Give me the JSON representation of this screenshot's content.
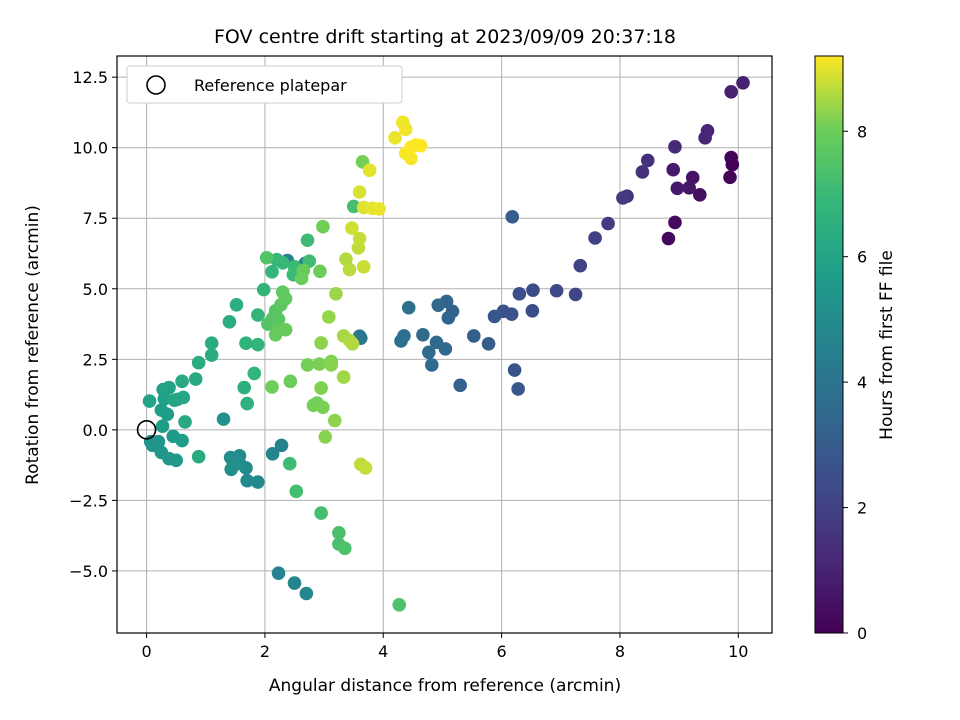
{
  "chart_data": {
    "type": "scatter",
    "title": "FOV centre drift starting at 2023/09/09 20:37:18",
    "xlabel": "Angular distance from reference (arcmin)",
    "ylabel": "Rotation from reference (arcmin)",
    "xlim": [
      -0.5,
      10.57
    ],
    "ylim": [
      -7.2,
      13.25
    ],
    "xticks": [
      0,
      2,
      4,
      6,
      8,
      10
    ],
    "yticks": [
      -5.0,
      -2.5,
      0.0,
      2.5,
      5.0,
      7.5,
      10.0,
      12.5
    ],
    "xtick_labels": [
      "0",
      "2",
      "4",
      "6",
      "8",
      "10"
    ],
    "ytick_labels": [
      "−5.0",
      "−2.5",
      "0.0",
      "2.5",
      "5.0",
      "7.5",
      "10.0",
      "12.5"
    ],
    "grid": true,
    "legend": {
      "placement": "top-left",
      "entries": [
        "Reference platepar"
      ]
    },
    "reference_point": {
      "x": 0.0,
      "y": 0.0
    },
    "colorbar": {
      "label": "Hours from first FF file",
      "colormap": "viridis",
      "range": [
        0,
        9.2
      ],
      "ticks": [
        0,
        2,
        4,
        6,
        8
      ],
      "tick_labels": [
        "0",
        "2",
        "4",
        "6",
        "8"
      ]
    },
    "points": [
      {
        "x": 9.9,
        "y": 9.4,
        "h": 0.05
      },
      {
        "x": 9.88,
        "y": 9.65,
        "h": 0.1
      },
      {
        "x": 9.86,
        "y": 8.95,
        "h": 0.12
      },
      {
        "x": 8.82,
        "y": 6.78,
        "h": 0.25
      },
      {
        "x": 8.93,
        "y": 7.35,
        "h": 0.3
      },
      {
        "x": 9.35,
        "y": 8.33,
        "h": 0.4
      },
      {
        "x": 9.23,
        "y": 8.94,
        "h": 0.55
      },
      {
        "x": 9.17,
        "y": 8.58,
        "h": 0.62
      },
      {
        "x": 8.97,
        "y": 8.56,
        "h": 0.7
      },
      {
        "x": 8.9,
        "y": 9.22,
        "h": 0.75
      },
      {
        "x": 9.88,
        "y": 11.98,
        "h": 0.9
      },
      {
        "x": 10.08,
        "y": 12.3,
        "h": 0.95
      },
      {
        "x": 9.48,
        "y": 10.6,
        "h": 1.05
      },
      {
        "x": 9.44,
        "y": 10.35,
        "h": 1.1
      },
      {
        "x": 8.93,
        "y": 10.03,
        "h": 1.25
      },
      {
        "x": 8.47,
        "y": 9.55,
        "h": 1.4
      },
      {
        "x": 8.38,
        "y": 9.14,
        "h": 1.5
      },
      {
        "x": 8.12,
        "y": 8.28,
        "h": 1.7
      },
      {
        "x": 8.05,
        "y": 8.22,
        "h": 1.75
      },
      {
        "x": 7.8,
        "y": 7.31,
        "h": 1.85
      },
      {
        "x": 7.58,
        "y": 6.8,
        "h": 1.95
      },
      {
        "x": 7.33,
        "y": 5.82,
        "h": 2.0
      },
      {
        "x": 7.25,
        "y": 4.8,
        "h": 2.15
      },
      {
        "x": 6.93,
        "y": 4.93,
        "h": 2.25
      },
      {
        "x": 6.53,
        "y": 4.95,
        "h": 2.35
      },
      {
        "x": 6.52,
        "y": 4.22,
        "h": 2.45
      },
      {
        "x": 6.3,
        "y": 4.82,
        "h": 2.5
      },
      {
        "x": 6.17,
        "y": 4.1,
        "h": 2.6
      },
      {
        "x": 6.03,
        "y": 4.2,
        "h": 2.65
      },
      {
        "x": 5.88,
        "y": 4.02,
        "h": 2.75
      },
      {
        "x": 6.22,
        "y": 2.12,
        "h": 2.7
      },
      {
        "x": 6.28,
        "y": 1.45,
        "h": 2.85
      },
      {
        "x": 6.18,
        "y": 7.55,
        "h": 3.05
      },
      {
        "x": 5.78,
        "y": 3.05,
        "h": 3.0
      },
      {
        "x": 5.53,
        "y": 3.33,
        "h": 3.1
      },
      {
        "x": 5.3,
        "y": 1.58,
        "h": 3.2
      },
      {
        "x": 5.17,
        "y": 4.2,
        "h": 3.2
      },
      {
        "x": 5.07,
        "y": 4.55,
        "h": 3.3
      },
      {
        "x": 5.1,
        "y": 3.97,
        "h": 3.35
      },
      {
        "x": 4.93,
        "y": 4.42,
        "h": 3.4
      },
      {
        "x": 4.9,
        "y": 3.1,
        "h": 3.45
      },
      {
        "x": 5.05,
        "y": 2.87,
        "h": 3.5
      },
      {
        "x": 4.77,
        "y": 2.75,
        "h": 3.55
      },
      {
        "x": 4.82,
        "y": 2.3,
        "h": 3.6
      },
      {
        "x": 4.67,
        "y": 3.37,
        "h": 3.6
      },
      {
        "x": 4.43,
        "y": 4.33,
        "h": 3.75
      },
      {
        "x": 4.35,
        "y": 3.33,
        "h": 3.8
      },
      {
        "x": 4.3,
        "y": 3.15,
        "h": 3.85
      },
      {
        "x": 3.6,
        "y": 3.32,
        "h": 4.05
      },
      {
        "x": 3.62,
        "y": 3.25,
        "h": 4.1
      },
      {
        "x": 2.38,
        "y": 6.0,
        "h": 4.5
      },
      {
        "x": 2.68,
        "y": 5.9,
        "h": 4.6
      },
      {
        "x": 2.28,
        "y": -0.55,
        "h": 4.55
      },
      {
        "x": 2.13,
        "y": -0.85,
        "h": 4.7
      },
      {
        "x": 2.23,
        "y": -5.08,
        "h": 4.6
      },
      {
        "x": 2.5,
        "y": -5.43,
        "h": 4.7
      },
      {
        "x": 2.7,
        "y": -5.8,
        "h": 4.75
      },
      {
        "x": 1.88,
        "y": -1.85,
        "h": 4.85
      },
      {
        "x": 1.7,
        "y": -1.8,
        "h": 4.9
      },
      {
        "x": 1.68,
        "y": -1.35,
        "h": 4.95
      },
      {
        "x": 1.57,
        "y": -0.92,
        "h": 5.0
      },
      {
        "x": 1.57,
        "y": -1.18,
        "h": 5.05
      },
      {
        "x": 1.45,
        "y": -1.07,
        "h": 5.0
      },
      {
        "x": 1.42,
        "y": -0.98,
        "h": 5.1
      },
      {
        "x": 1.43,
        "y": -1.4,
        "h": 5.15
      },
      {
        "x": 1.48,
        "y": -1.25,
        "h": 5.2
      },
      {
        "x": 1.3,
        "y": 0.38,
        "h": 5.25
      },
      {
        "x": 0.07,
        "y": -0.42,
        "h": 5.3
      },
      {
        "x": 0.1,
        "y": -0.55,
        "h": 5.35
      },
      {
        "x": 0.2,
        "y": -0.42,
        "h": 5.4
      },
      {
        "x": 0.25,
        "y": -0.8,
        "h": 5.45
      },
      {
        "x": 0.38,
        "y": -1.02,
        "h": 5.5
      },
      {
        "x": 0.5,
        "y": -1.08,
        "h": 5.55
      },
      {
        "x": 0.45,
        "y": -0.23,
        "h": 5.6
      },
      {
        "x": 0.6,
        "y": -0.38,
        "h": 5.65
      },
      {
        "x": 0.27,
        "y": 0.13,
        "h": 5.7
      },
      {
        "x": 0.25,
        "y": 0.7,
        "h": 5.75
      },
      {
        "x": 0.35,
        "y": 0.55,
        "h": 5.8
      },
      {
        "x": 0.3,
        "y": 1.1,
        "h": 5.85
      },
      {
        "x": 0.28,
        "y": 1.43,
        "h": 5.9
      },
      {
        "x": 0.38,
        "y": 1.5,
        "h": 5.95
      },
      {
        "x": 0.05,
        "y": 1.02,
        "h": 6.0
      },
      {
        "x": 0.47,
        "y": 1.05,
        "h": 6.0
      },
      {
        "x": 0.52,
        "y": 1.08,
        "h": 6.05
      },
      {
        "x": 0.62,
        "y": 1.15,
        "h": 6.1
      },
      {
        "x": 0.65,
        "y": 0.28,
        "h": 6.15
      },
      {
        "x": 0.6,
        "y": 1.72,
        "h": 6.2
      },
      {
        "x": 0.83,
        "y": 1.8,
        "h": 6.25
      },
      {
        "x": 0.88,
        "y": -0.95,
        "h": 6.3
      },
      {
        "x": 0.88,
        "y": 2.38,
        "h": 6.3
      },
      {
        "x": 1.1,
        "y": 2.65,
        "h": 6.35
      },
      {
        "x": 1.1,
        "y": 3.07,
        "h": 6.4
      },
      {
        "x": 1.4,
        "y": 3.83,
        "h": 6.45
      },
      {
        "x": 1.52,
        "y": 4.43,
        "h": 6.5
      },
      {
        "x": 1.65,
        "y": 1.5,
        "h": 6.55
      },
      {
        "x": 1.7,
        "y": 0.93,
        "h": 6.6
      },
      {
        "x": 1.68,
        "y": 3.07,
        "h": 6.65
      },
      {
        "x": 1.88,
        "y": 3.02,
        "h": 6.7
      },
      {
        "x": 1.82,
        "y": 2.0,
        "h": 6.75
      },
      {
        "x": 1.88,
        "y": 4.07,
        "h": 6.8
      },
      {
        "x": 1.98,
        "y": 4.97,
        "h": 6.8
      },
      {
        "x": 2.12,
        "y": 5.6,
        "h": 6.85
      },
      {
        "x": 2.2,
        "y": 6.03,
        "h": 6.9
      },
      {
        "x": 2.3,
        "y": 5.92,
        "h": 6.95
      },
      {
        "x": 2.5,
        "y": 5.78,
        "h": 7.0
      },
      {
        "x": 2.48,
        "y": 5.5,
        "h": 7.05
      },
      {
        "x": 2.72,
        "y": 6.72,
        "h": 7.1
      },
      {
        "x": 2.75,
        "y": 5.98,
        "h": 7.15
      },
      {
        "x": 2.42,
        "y": -1.2,
        "h": 7.1
      },
      {
        "x": 2.53,
        "y": -2.18,
        "h": 7.2
      },
      {
        "x": 2.95,
        "y": -2.95,
        "h": 7.25
      },
      {
        "x": 3.25,
        "y": -3.65,
        "h": 7.3
      },
      {
        "x": 3.25,
        "y": -4.05,
        "h": 7.35
      },
      {
        "x": 3.35,
        "y": -4.2,
        "h": 7.4
      },
      {
        "x": 4.27,
        "y": -6.2,
        "h": 7.4
      },
      {
        "x": 2.03,
        "y": 6.1,
        "h": 7.5
      },
      {
        "x": 2.05,
        "y": 3.75,
        "h": 7.5
      },
      {
        "x": 2.13,
        "y": 3.95,
        "h": 7.55
      },
      {
        "x": 2.18,
        "y": 4.22,
        "h": 7.6
      },
      {
        "x": 2.23,
        "y": 3.92,
        "h": 7.65
      },
      {
        "x": 2.27,
        "y": 4.43,
        "h": 7.7
      },
      {
        "x": 2.3,
        "y": 4.88,
        "h": 7.75
      },
      {
        "x": 2.35,
        "y": 4.65,
        "h": 7.8
      },
      {
        "x": 2.22,
        "y": 3.55,
        "h": 7.8
      },
      {
        "x": 2.18,
        "y": 3.37,
        "h": 7.85
      },
      {
        "x": 2.35,
        "y": 3.55,
        "h": 7.9
      },
      {
        "x": 2.43,
        "y": 1.72,
        "h": 7.95
      },
      {
        "x": 2.12,
        "y": 1.52,
        "h": 8.0
      },
      {
        "x": 2.65,
        "y": 5.65,
        "h": 7.9
      },
      {
        "x": 2.62,
        "y": 5.37,
        "h": 7.95
      },
      {
        "x": 2.93,
        "y": 5.62,
        "h": 8.0
      },
      {
        "x": 2.98,
        "y": 7.2,
        "h": 8.05
      },
      {
        "x": 2.88,
        "y": 0.95,
        "h": 8.05
      },
      {
        "x": 2.82,
        "y": 0.87,
        "h": 8.1
      },
      {
        "x": 2.98,
        "y": 0.8,
        "h": 8.15
      },
      {
        "x": 2.95,
        "y": 1.48,
        "h": 8.2
      },
      {
        "x": 3.02,
        "y": -0.25,
        "h": 8.25
      },
      {
        "x": 3.18,
        "y": 0.33,
        "h": 8.3
      },
      {
        "x": 2.72,
        "y": 2.3,
        "h": 8.1
      },
      {
        "x": 2.92,
        "y": 2.33,
        "h": 8.15
      },
      {
        "x": 3.12,
        "y": 2.42,
        "h": 8.2
      },
      {
        "x": 3.12,
        "y": 2.3,
        "h": 8.25
      },
      {
        "x": 2.95,
        "y": 3.08,
        "h": 8.3
      },
      {
        "x": 3.08,
        "y": 4.0,
        "h": 8.35
      },
      {
        "x": 3.2,
        "y": 4.82,
        "h": 8.4
      },
      {
        "x": 3.33,
        "y": 1.87,
        "h": 8.45
      },
      {
        "x": 3.33,
        "y": 3.33,
        "h": 8.5
      },
      {
        "x": 3.43,
        "y": 3.17,
        "h": 8.55
      },
      {
        "x": 3.48,
        "y": 3.05,
        "h": 8.6
      },
      {
        "x": 3.37,
        "y": 6.05,
        "h": 8.6
      },
      {
        "x": 3.43,
        "y": 5.68,
        "h": 8.65
      },
      {
        "x": 3.58,
        "y": 6.45,
        "h": 8.7
      },
      {
        "x": 3.6,
        "y": 6.78,
        "h": 8.75
      },
      {
        "x": 3.62,
        "y": -1.22,
        "h": 8.7
      },
      {
        "x": 3.7,
        "y": -1.35,
        "h": 8.75
      },
      {
        "x": 3.67,
        "y": 5.78,
        "h": 8.8
      },
      {
        "x": 3.47,
        "y": 7.15,
        "h": 8.85
      },
      {
        "x": 3.5,
        "y": 7.92,
        "h": 7.3
      },
      {
        "x": 3.65,
        "y": 9.5,
        "h": 8.1
      },
      {
        "x": 3.6,
        "y": 8.43,
        "h": 8.9
      },
      {
        "x": 3.67,
        "y": 7.88,
        "h": 8.95
      },
      {
        "x": 3.82,
        "y": 7.85,
        "h": 9.0
      },
      {
        "x": 3.93,
        "y": 7.83,
        "h": 9.05
      },
      {
        "x": 3.77,
        "y": 9.2,
        "h": 9.0
      },
      {
        "x": 4.2,
        "y": 10.35,
        "h": 9.05
      },
      {
        "x": 4.33,
        "y": 10.9,
        "h": 9.1
      },
      {
        "x": 4.38,
        "y": 10.65,
        "h": 9.1
      },
      {
        "x": 4.38,
        "y": 9.8,
        "h": 9.15
      },
      {
        "x": 4.47,
        "y": 9.62,
        "h": 9.15
      },
      {
        "x": 4.55,
        "y": 10.1,
        "h": 9.2
      },
      {
        "x": 4.63,
        "y": 10.07,
        "h": 9.2
      },
      {
        "x": 4.47,
        "y": 10.02,
        "h": 9.2
      }
    ]
  }
}
